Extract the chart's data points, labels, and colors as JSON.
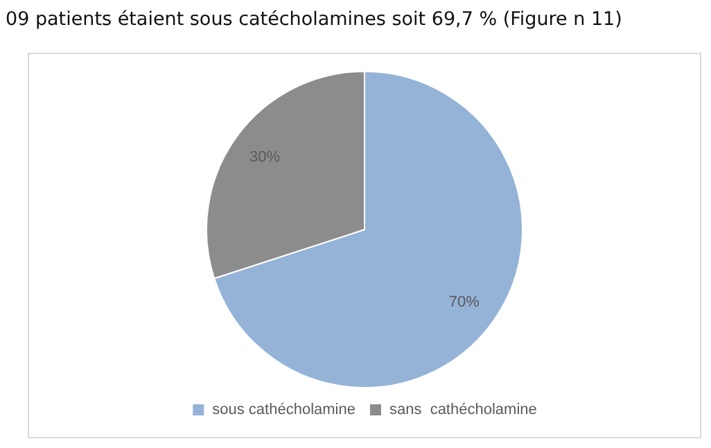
{
  "chart_data": {
    "type": "pie",
    "categories": [
      "sous cathécholamine",
      "sans  cathécholamine"
    ],
    "values": [
      70,
      30
    ],
    "colors": [
      "#95b3d7",
      "#8c8c8c"
    ],
    "value_labels": [
      "70%",
      "30%"
    ],
    "legend": "bottom",
    "annotations": [
      "09 patients étaient sous catécholamines soit 69,7 % (Figure n 11)"
    ]
  }
}
